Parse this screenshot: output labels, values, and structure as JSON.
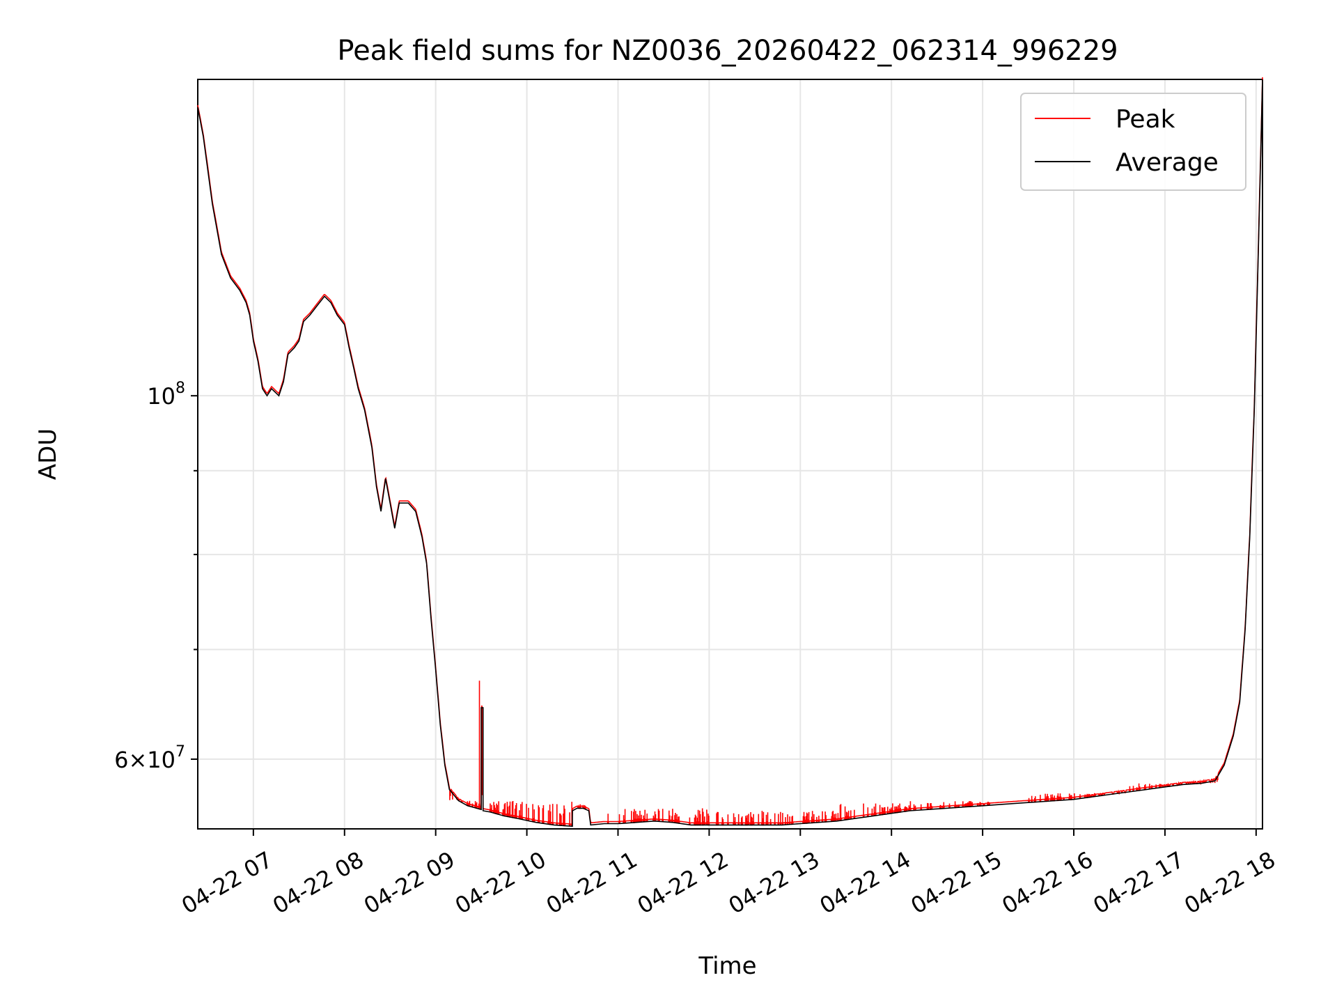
{
  "chart_data": {
    "type": "line",
    "title": "Peak field sums for NZ0036_20260422_062314_996229",
    "xlabel": "Time",
    "ylabel": "ADU",
    "x_axis": "time (hours on 2026-04-22)",
    "y_scale": "log",
    "xlim": [
      6.39,
      18.07
    ],
    "ylim": [
      54400000.0,
      156000000.0
    ],
    "grid": true,
    "legend_position": "top-right",
    "xticks": [
      {
        "x": 7,
        "label": "04-22 07"
      },
      {
        "x": 8,
        "label": "04-22 08"
      },
      {
        "x": 9,
        "label": "04-22 09"
      },
      {
        "x": 10,
        "label": "04-22 10"
      },
      {
        "x": 11,
        "label": "04-22 11"
      },
      {
        "x": 12,
        "label": "04-22 12"
      },
      {
        "x": 13,
        "label": "04-22 13"
      },
      {
        "x": 14,
        "label": "04-22 14"
      },
      {
        "x": 15,
        "label": "04-22 15"
      },
      {
        "x": 16,
        "label": "04-22 16"
      },
      {
        "x": 17,
        "label": "04-22 17"
      },
      {
        "x": 18,
        "label": "04-22 18"
      }
    ],
    "yticks_major": [
      {
        "y": 100000000,
        "base": "10",
        "exp": "8",
        "mantissa": ""
      },
      {
        "y": 60000000,
        "base": "10",
        "exp": "7",
        "mantissa": "6"
      }
    ],
    "yticks_minor": [
      70000000,
      80000000,
      90000000
    ],
    "series": [
      {
        "name": "Average",
        "color": "#000000",
        "points": [
          [
            6.39,
            150000000.0
          ],
          [
            6.45,
            144000000.0
          ],
          [
            6.55,
            131000000.0
          ],
          [
            6.65,
            122000000.0
          ],
          [
            6.75,
            118000000.0
          ],
          [
            6.85,
            116000000.0
          ],
          [
            6.92,
            114000000.0
          ],
          [
            6.96,
            112000000.0
          ],
          [
            7.0,
            108000000.0
          ],
          [
            7.05,
            105000000.0
          ],
          [
            7.1,
            101000000.0
          ],
          [
            7.15,
            100000000.0
          ],
          [
            7.2,
            101000000.0
          ],
          [
            7.28,
            100000000.0
          ],
          [
            7.33,
            102000000.0
          ],
          [
            7.38,
            106000000.0
          ],
          [
            7.45,
            107000000.0
          ],
          [
            7.5,
            108000000.0
          ],
          [
            7.55,
            111000000.0
          ],
          [
            7.62,
            112000000.0
          ],
          [
            7.7,
            113500000.0
          ],
          [
            7.78,
            115000000.0
          ],
          [
            7.85,
            114000000.0
          ],
          [
            7.92,
            112000000.0
          ],
          [
            8.0,
            110500000.0
          ],
          [
            8.05,
            107000000.0
          ],
          [
            8.1,
            104000000.0
          ],
          [
            8.15,
            101000000.0
          ],
          [
            8.22,
            98000000.0
          ],
          [
            8.3,
            93000000.0
          ],
          [
            8.35,
            88000000.0
          ],
          [
            8.4,
            85000000.0
          ],
          [
            8.45,
            89000000.0
          ],
          [
            8.5,
            86000000.0
          ],
          [
            8.55,
            83000000.0
          ],
          [
            8.6,
            86000000.0
          ],
          [
            8.7,
            86000000.0
          ],
          [
            8.78,
            85000000.0
          ],
          [
            8.85,
            82000000.0
          ],
          [
            8.9,
            79000000.0
          ],
          [
            8.95,
            73000000.0
          ],
          [
            9.0,
            68000000.0
          ],
          [
            9.05,
            63000000.0
          ],
          [
            9.1,
            59500000.0
          ],
          [
            9.15,
            57500000.0
          ],
          [
            9.25,
            56600000.0
          ],
          [
            9.35,
            56200000.0
          ],
          [
            9.45,
            56000000.0
          ],
          [
            9.5,
            55900000.0
          ],
          [
            9.5,
            64500000.0
          ],
          [
            9.52,
            64500000.0
          ],
          [
            9.52,
            55800000.0
          ],
          [
            9.6,
            55700000.0
          ],
          [
            9.75,
            55400000.0
          ],
          [
            9.9,
            55200000.0
          ],
          [
            10.1,
            54900000.0
          ],
          [
            10.3,
            54700000.0
          ],
          [
            10.5,
            54600000.0
          ],
          [
            10.5,
            55800000.0
          ],
          [
            10.55,
            56000000.0
          ],
          [
            10.62,
            56000000.0
          ],
          [
            10.68,
            55800000.0
          ],
          [
            10.7,
            54700000.0
          ],
          [
            10.85,
            54800000.0
          ],
          [
            11.0,
            54800000.0
          ],
          [
            11.2,
            54900000.0
          ],
          [
            11.4,
            55000000.0
          ],
          [
            11.6,
            54900000.0
          ],
          [
            11.8,
            54700000.0
          ],
          [
            12.0,
            54700000.0
          ],
          [
            12.2,
            54700000.0
          ],
          [
            12.4,
            54700000.0
          ],
          [
            12.6,
            54700000.0
          ],
          [
            12.8,
            54700000.0
          ],
          [
            13.0,
            54800000.0
          ],
          [
            13.2,
            54900000.0
          ],
          [
            13.4,
            55000000.0
          ],
          [
            13.6,
            55200000.0
          ],
          [
            13.8,
            55400000.0
          ],
          [
            14.0,
            55600000.0
          ],
          [
            14.2,
            55800000.0
          ],
          [
            14.4,
            55900000.0
          ],
          [
            14.6,
            56000000.0
          ],
          [
            14.8,
            56100000.0
          ],
          [
            15.0,
            56200000.0
          ],
          [
            15.2,
            56300000.0
          ],
          [
            15.4,
            56400000.0
          ],
          [
            15.6,
            56500000.0
          ],
          [
            15.8,
            56600000.0
          ],
          [
            16.0,
            56700000.0
          ],
          [
            16.2,
            56900000.0
          ],
          [
            16.4,
            57100000.0
          ],
          [
            16.6,
            57300000.0
          ],
          [
            16.8,
            57500000.0
          ],
          [
            17.0,
            57700000.0
          ],
          [
            17.2,
            57900000.0
          ],
          [
            17.4,
            58000000.0
          ],
          [
            17.55,
            58200000.0
          ],
          [
            17.65,
            59500000.0
          ],
          [
            17.75,
            62000000.0
          ],
          [
            17.82,
            65000000.0
          ],
          [
            17.88,
            72000000.0
          ],
          [
            17.93,
            82000000.0
          ],
          [
            17.98,
            98000000.0
          ],
          [
            18.02,
            120000000.0
          ],
          [
            18.05,
            140000000.0
          ],
          [
            18.07,
            156000000.0
          ]
        ]
      },
      {
        "name": "Peak",
        "color": "#ff0000",
        "spike_ranges": [
          {
            "from": 9.15,
            "to": 10.5,
            "max": 56600000.0
          },
          {
            "from": 10.55,
            "to": 10.68,
            "max": 56400000.0
          },
          {
            "from": 10.85,
            "to": 12.0,
            "max": 56000000.0
          },
          {
            "from": 12.0,
            "to": 13.4,
            "max": 55800000.0
          },
          {
            "from": 13.4,
            "to": 14.2,
            "max": 56400000.0
          },
          {
            "from": 14.2,
            "to": 15.1,
            "max": 56600000.0
          },
          {
            "from": 15.5,
            "to": 16.6,
            "max": 57200000.0
          },
          {
            "from": 16.6,
            "to": 17.6,
            "max": 58000000.0
          }
        ],
        "extra_peaks": [
          [
            9.48,
            67000000.0
          ]
        ]
      }
    ]
  }
}
